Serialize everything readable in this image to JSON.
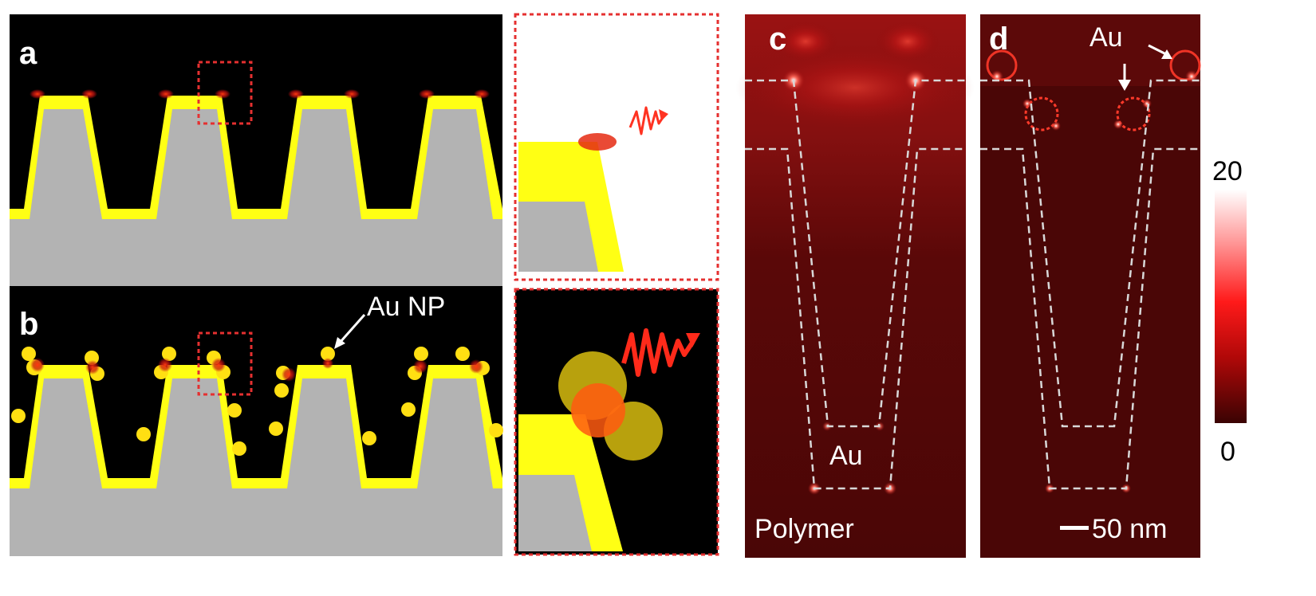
{
  "panels": {
    "a": {
      "label": "a"
    },
    "b": {
      "label": "b",
      "nanoparticle_label": "Au NP"
    },
    "c": {
      "label": "c",
      "metal_label": "Au",
      "substrate_label": "Polymer"
    },
    "d": {
      "label": "d",
      "metal_label": "Au",
      "scale_bar_label": "50 nm"
    }
  },
  "colorbar": {
    "max_label": "20",
    "min_label": "0"
  },
  "colors": {
    "gold_film": "#ffff14",
    "polymer": "#b3b3b3",
    "background": "#000000",
    "nanoparticle": "#ffe11a",
    "hotspot": "#e01010",
    "field_map_base": "#4a0606",
    "inset_border": "#e53030",
    "dashed_outline": "#d8d8d8"
  }
}
